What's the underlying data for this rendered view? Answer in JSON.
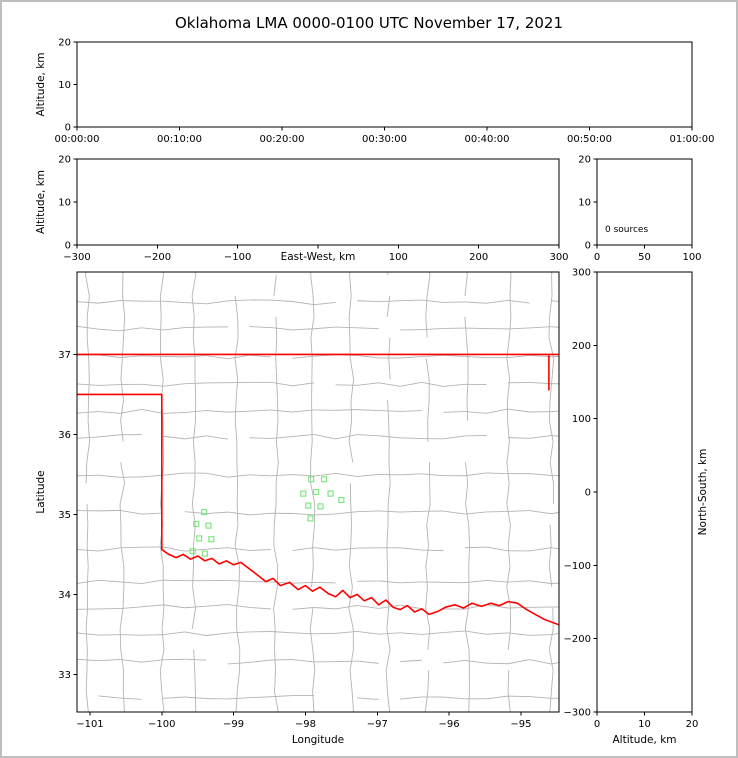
{
  "title": "Oklahoma LMA 0000-0100 UTC November 17, 2021",
  "colors": {
    "background": "#ffffff",
    "page_border": "#bebebe",
    "axis": "#000000",
    "county_lines": "#b4b4b4",
    "state_border": "#ff0000",
    "stations": "#82e682"
  },
  "chart_data": [
    {
      "id": "time_height",
      "type": "scatter",
      "xlabel": "",
      "ylabel": "Altitude, km",
      "xlim": [
        0,
        3600
      ],
      "ylim": [
        0,
        20
      ],
      "xticks": {
        "vals": [
          0,
          600,
          1200,
          1800,
          2400,
          3000,
          3600
        ],
        "labels": [
          "00:00:00",
          "00:10:00",
          "00:20:00",
          "00:30:00",
          "00:40:00",
          "00:50:00",
          "01:00:00"
        ]
      },
      "yticks": {
        "vals": [
          0,
          10,
          20
        ],
        "labels": [
          "0",
          "10",
          "20"
        ]
      },
      "points": []
    },
    {
      "id": "ew_height",
      "type": "scatter",
      "xlabel": "East-West, km",
      "xlabel_inline": true,
      "ylabel": "Altitude, km",
      "xlim": [
        -300,
        300
      ],
      "ylim": [
        0,
        20
      ],
      "xticks": {
        "vals": [
          -300,
          -200,
          -100,
          0,
          100,
          200,
          300
        ],
        "labels": [
          "−300",
          "−200",
          "−100",
          "",
          "100",
          "200",
          "300"
        ]
      },
      "yticks": {
        "vals": [
          0,
          10,
          20
        ],
        "labels": [
          "0",
          "10",
          "20"
        ]
      },
      "points": []
    },
    {
      "id": "source_histogram",
      "type": "line",
      "annotation": "0 sources",
      "xlabel": "",
      "ylabel": "",
      "xlim": [
        0,
        100
      ],
      "ylim": [
        0,
        20
      ],
      "xticks": {
        "vals": [
          0,
          50,
          100
        ],
        "labels": [
          "0",
          "50",
          "100"
        ]
      },
      "yticks": {
        "vals": [
          0,
          10,
          20
        ],
        "labels": [
          "0",
          "10",
          "20"
        ]
      },
      "points": []
    },
    {
      "id": "plan_view",
      "type": "scatter",
      "xlabel": "Longitude",
      "ylabel": "Latitude",
      "xlim": [
        -101.18,
        -94.47
      ],
      "ylim": [
        32.53,
        38.03
      ],
      "xticks": {
        "vals": [
          -101,
          -100,
          -99,
          -98,
          -97,
          -96,
          -95
        ],
        "labels": [
          "−101",
          "−100",
          "−99",
          "−98",
          "−97",
          "−96",
          "−95"
        ]
      },
      "yticks": {
        "vals": [
          33,
          34,
          35,
          36,
          37
        ],
        "labels": [
          "33",
          "34",
          "35",
          "36",
          "37"
        ]
      },
      "stations": [
        [
          -99.41,
          35.03
        ],
        [
          -99.52,
          34.88
        ],
        [
          -99.35,
          34.86
        ],
        [
          -99.48,
          34.7
        ],
        [
          -99.31,
          34.69
        ],
        [
          -99.57,
          34.54
        ],
        [
          -99.4,
          34.51
        ],
        [
          -97.92,
          35.44
        ],
        [
          -97.74,
          35.44
        ],
        [
          -98.03,
          35.26
        ],
        [
          -97.85,
          35.28
        ],
        [
          -97.65,
          35.26
        ],
        [
          -97.96,
          35.11
        ],
        [
          -97.79,
          35.1
        ],
        [
          -97.5,
          35.18
        ],
        [
          -97.93,
          34.95
        ]
      ],
      "state_border": [
        [
          [
            -101.18,
            37.0
          ],
          [
            -94.47,
            37.0
          ]
        ],
        [
          [
            -94.61,
            37.0
          ],
          [
            -94.61,
            36.55
          ]
        ],
        [
          [
            -101.18,
            36.5
          ],
          [
            -100.0,
            36.5
          ],
          [
            -100.0,
            34.56
          ],
          [
            -99.9,
            34.5
          ],
          [
            -99.8,
            34.46
          ],
          [
            -99.7,
            34.5
          ],
          [
            -99.6,
            34.44
          ],
          [
            -99.5,
            34.48
          ],
          [
            -99.4,
            34.42
          ],
          [
            -99.3,
            34.45
          ],
          [
            -99.2,
            34.38
          ],
          [
            -99.1,
            34.42
          ],
          [
            -99.0,
            34.37
          ],
          [
            -98.9,
            34.4
          ],
          [
            -98.78,
            34.32
          ],
          [
            -98.65,
            34.23
          ],
          [
            -98.55,
            34.16
          ],
          [
            -98.45,
            34.2
          ],
          [
            -98.35,
            34.11
          ],
          [
            -98.22,
            34.15
          ],
          [
            -98.1,
            34.06
          ],
          [
            -98.0,
            34.11
          ],
          [
            -97.9,
            34.04
          ],
          [
            -97.8,
            34.09
          ],
          [
            -97.68,
            34.01
          ],
          [
            -97.58,
            33.97
          ],
          [
            -97.48,
            34.05
          ],
          [
            -97.38,
            33.96
          ],
          [
            -97.28,
            34.0
          ],
          [
            -97.18,
            33.92
          ],
          [
            -97.08,
            33.96
          ],
          [
            -96.98,
            33.87
          ],
          [
            -96.88,
            33.93
          ],
          [
            -96.78,
            33.84
          ],
          [
            -96.68,
            33.81
          ],
          [
            -96.58,
            33.86
          ],
          [
            -96.48,
            33.78
          ],
          [
            -96.38,
            33.82
          ],
          [
            -96.28,
            33.75
          ],
          [
            -96.15,
            33.79
          ],
          [
            -96.05,
            33.84
          ],
          [
            -95.92,
            33.87
          ],
          [
            -95.8,
            33.83
          ],
          [
            -95.68,
            33.89
          ],
          [
            -95.55,
            33.85
          ],
          [
            -95.42,
            33.89
          ],
          [
            -95.3,
            33.86
          ],
          [
            -95.18,
            33.91
          ],
          [
            -95.05,
            33.89
          ],
          [
            -94.92,
            33.81
          ],
          [
            -94.8,
            33.75
          ],
          [
            -94.68,
            33.69
          ],
          [
            -94.47,
            33.62
          ]
        ]
      ]
    },
    {
      "id": "ns_height",
      "type": "scatter",
      "xlabel": "Altitude, km",
      "ylabel": "North-South, km",
      "ylabel_side": "right",
      "xlim": [
        0,
        20
      ],
      "ylim": [
        -300,
        300
      ],
      "xticks": {
        "vals": [
          0,
          10,
          20
        ],
        "labels": [
          "0",
          "10",
          "20"
        ]
      },
      "yticks": {
        "vals": [
          -300,
          -200,
          -100,
          0,
          100,
          200,
          300
        ],
        "labels": [
          "−300",
          "−200",
          "−100",
          "0",
          "100",
          "200",
          "300"
        ]
      },
      "points": []
    }
  ]
}
